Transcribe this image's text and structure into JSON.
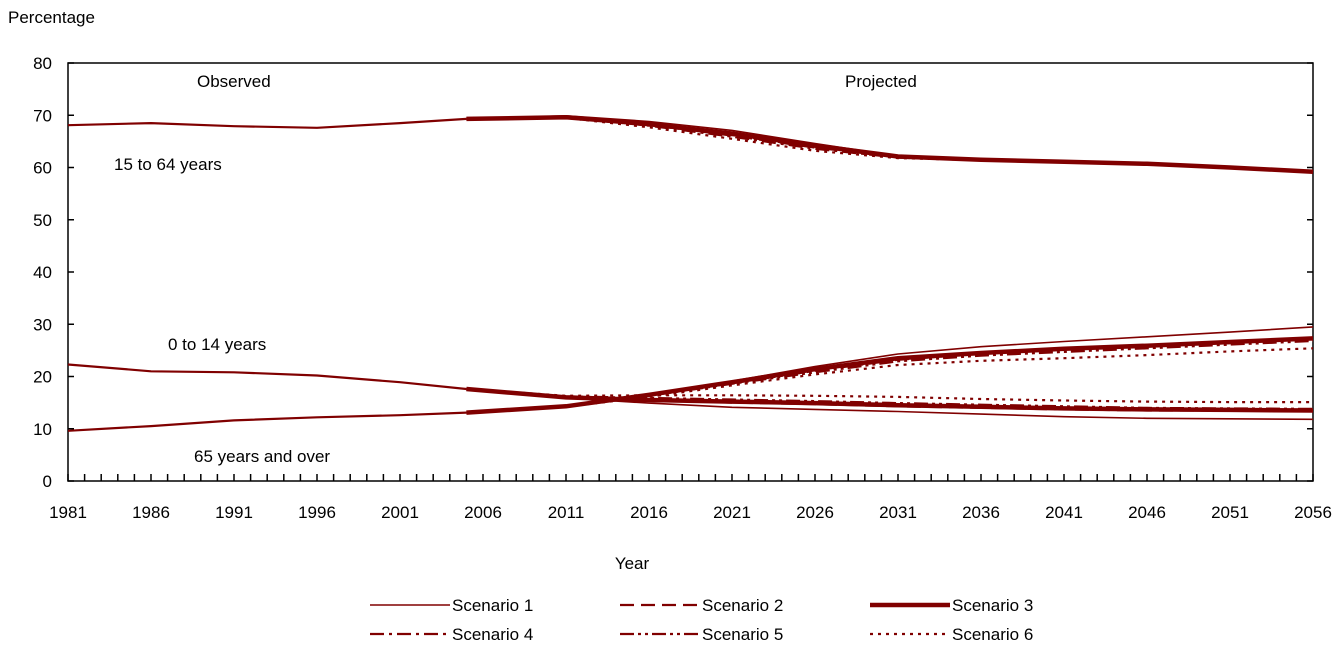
{
  "chart_data": {
    "type": "line",
    "ylabel": "Percentage",
    "xlabel": "Year",
    "ylim": [
      0,
      80
    ],
    "xlim": [
      1981,
      2056
    ],
    "yticks": [
      0,
      10,
      20,
      30,
      40,
      50,
      60,
      70,
      80
    ],
    "xticks": [
      1981,
      1986,
      1991,
      1996,
      2001,
      2006,
      2011,
      2016,
      2021,
      2026,
      2031,
      2036,
      2041,
      2046,
      2051,
      2056
    ],
    "regions": {
      "observed": "Observed",
      "projected": "Projected"
    },
    "group_labels": {
      "working_age": "15 to 64 years",
      "children": "0 to 14 years",
      "seniors": "65 years and over"
    },
    "line_color": "#800000",
    "legend": [
      "Scenario 1",
      "Scenario 2",
      "Scenario 3",
      "Scenario 4",
      "Scenario 5",
      "Scenario 6"
    ],
    "series": [
      {
        "name": "15 to 64 years (observed)",
        "x": [
          1981,
          1986,
          1991,
          1996,
          2001,
          2005
        ],
        "y": [
          68.1,
          68.5,
          67.9,
          67.6,
          68.5,
          69.3
        ]
      },
      {
        "name": "0 to 14 years (observed)",
        "x": [
          1981,
          1986,
          1991,
          1996,
          2001,
          2005
        ],
        "y": [
          22.3,
          21.0,
          20.8,
          20.2,
          18.9,
          17.6
        ]
      },
      {
        "name": "65 years and over (observed)",
        "x": [
          1981,
          1986,
          1991,
          1996,
          2001,
          2005
        ],
        "y": [
          9.6,
          10.5,
          11.6,
          12.2,
          12.6,
          13.1
        ]
      },
      {
        "name": "Scenario 1",
        "x": [
          2005,
          2011,
          2016,
          2021,
          2026,
          2031,
          2036,
          2041,
          2046,
          2051,
          2056
        ],
        "y": [
          69.3,
          69.9,
          68.8,
          67.1,
          64.6,
          62.2,
          61.5,
          61.1,
          60.7,
          60.0,
          59.2
        ]
      },
      {
        "name": "Scenario 2",
        "x": [
          2005,
          2011,
          2016,
          2021,
          2026,
          2031,
          2036,
          2041,
          2046,
          2051,
          2056
        ],
        "y": [
          69.3,
          69.7,
          68.2,
          66.1,
          63.8,
          62.0,
          61.4,
          61.1,
          60.7,
          60.0,
          59.2
        ]
      },
      {
        "name": "Scenario 3",
        "x": [
          2005,
          2011,
          2016,
          2021,
          2026,
          2031,
          2036,
          2041,
          2046,
          2051,
          2056
        ],
        "y": [
          69.3,
          69.6,
          68.3,
          66.5,
          64.2,
          62.1,
          61.5,
          61.1,
          60.7,
          60.0,
          59.2
        ]
      },
      {
        "name": "Scenario 4",
        "x": [
          2005,
          2011,
          2016,
          2021,
          2026,
          2031,
          2036,
          2041,
          2046,
          2051,
          2056
        ],
        "y": [
          69.3,
          69.6,
          68.0,
          65.9,
          63.6,
          61.9,
          61.4,
          61.1,
          60.7,
          60.0,
          59.2
        ]
      },
      {
        "name": "Scenario 5",
        "x": [
          2005,
          2011,
          2016,
          2021,
          2026,
          2031,
          2036,
          2041,
          2046,
          2051,
          2056
        ],
        "y": [
          69.3,
          69.6,
          68.1,
          66.2,
          63.9,
          62.0,
          61.5,
          61.1,
          60.7,
          60.0,
          59.2
        ]
      },
      {
        "name": "Scenario 6",
        "x": [
          2005,
          2011,
          2016,
          2021,
          2026,
          2031,
          2036,
          2041,
          2046,
          2051,
          2056
        ],
        "y": [
          69.3,
          69.5,
          67.7,
          65.5,
          63.2,
          61.8,
          61.4,
          61.1,
          60.7,
          60.0,
          59.2
        ]
      },
      {
        "name": "Scenario 1",
        "x": [
          2005,
          2011,
          2016,
          2021,
          2026,
          2031,
          2036,
          2041,
          2046,
          2051,
          2056
        ],
        "y": [
          17.6,
          15.9,
          14.9,
          14.1,
          13.7,
          13.3,
          12.8,
          12.3,
          12.0,
          11.9,
          11.8
        ]
      },
      {
        "name": "Scenario 2",
        "x": [
          2005,
          2011,
          2016,
          2021,
          2026,
          2031,
          2036,
          2041,
          2046,
          2051,
          2056
        ],
        "y": [
          17.6,
          16.1,
          15.5,
          15.0,
          14.7,
          14.3,
          14.0,
          13.7,
          13.5,
          13.5,
          13.4
        ]
      },
      {
        "name": "Scenario 3",
        "x": [
          2005,
          2011,
          2016,
          2021,
          2026,
          2031,
          2036,
          2041,
          2046,
          2051,
          2056
        ],
        "y": [
          17.6,
          16.0,
          15.5,
          15.2,
          14.9,
          14.5,
          14.2,
          13.9,
          13.7,
          13.6,
          13.5
        ]
      },
      {
        "name": "Scenario 4",
        "x": [
          2005,
          2011,
          2016,
          2021,
          2026,
          2031,
          2036,
          2041,
          2046,
          2051,
          2056
        ],
        "y": [
          17.6,
          16.1,
          15.6,
          15.2,
          14.9,
          14.5,
          14.1,
          13.8,
          13.6,
          13.6,
          13.5
        ]
      },
      {
        "name": "Scenario 5",
        "x": [
          2005,
          2011,
          2016,
          2021,
          2026,
          2031,
          2036,
          2041,
          2046,
          2051,
          2056
        ],
        "y": [
          17.6,
          16.2,
          15.9,
          15.6,
          15.3,
          14.9,
          14.6,
          14.3,
          14.0,
          13.9,
          13.8
        ]
      },
      {
        "name": "Scenario 6",
        "x": [
          2005,
          2011,
          2016,
          2021,
          2026,
          2031,
          2036,
          2041,
          2046,
          2051,
          2056
        ],
        "y": [
          17.6,
          16.3,
          16.4,
          16.4,
          16.3,
          16.1,
          15.7,
          15.4,
          15.2,
          15.1,
          15.1
        ]
      },
      {
        "name": "Scenario 1",
        "x": [
          2005,
          2011,
          2016,
          2021,
          2026,
          2031,
          2036,
          2041,
          2046,
          2051,
          2056
        ],
        "y": [
          13.1,
          14.3,
          16.6,
          19.1,
          21.9,
          24.3,
          25.7,
          26.7,
          27.6,
          28.5,
          29.5
        ]
      },
      {
        "name": "Scenario 2",
        "x": [
          2005,
          2011,
          2016,
          2021,
          2026,
          2031,
          2036,
          2041,
          2046,
          2051,
          2056
        ],
        "y": [
          13.1,
          14.3,
          16.5,
          18.9,
          21.3,
          23.6,
          24.5,
          25.2,
          25.9,
          26.5,
          27.2
        ]
      },
      {
        "name": "Scenario 3",
        "x": [
          2005,
          2011,
          2016,
          2021,
          2026,
          2031,
          2036,
          2041,
          2046,
          2051,
          2056
        ],
        "y": [
          13.1,
          14.3,
          16.5,
          18.9,
          21.4,
          23.5,
          24.5,
          25.3,
          25.9,
          26.6,
          27.3
        ]
      },
      {
        "name": "Scenario 4",
        "x": [
          2005,
          2011,
          2016,
          2021,
          2026,
          2031,
          2036,
          2041,
          2046,
          2051,
          2056
        ],
        "y": [
          13.1,
          14.3,
          16.4,
          18.7,
          21.1,
          23.2,
          24.4,
          25.2,
          25.8,
          26.4,
          27.2
        ]
      },
      {
        "name": "Scenario 5",
        "x": [
          2005,
          2011,
          2016,
          2021,
          2026,
          2031,
          2036,
          2041,
          2046,
          2051,
          2056
        ],
        "y": [
          13.1,
          14.3,
          16.3,
          18.6,
          20.8,
          22.9,
          24.0,
          24.7,
          25.4,
          26.1,
          26.8
        ]
      },
      {
        "name": "Scenario 6",
        "x": [
          2005,
          2011,
          2016,
          2021,
          2026,
          2031,
          2036,
          2041,
          2046,
          2051,
          2056
        ],
        "y": [
          13.1,
          14.2,
          16.1,
          18.3,
          20.4,
          22.2,
          23.0,
          23.5,
          24.1,
          24.8,
          25.4
        ]
      }
    ]
  }
}
